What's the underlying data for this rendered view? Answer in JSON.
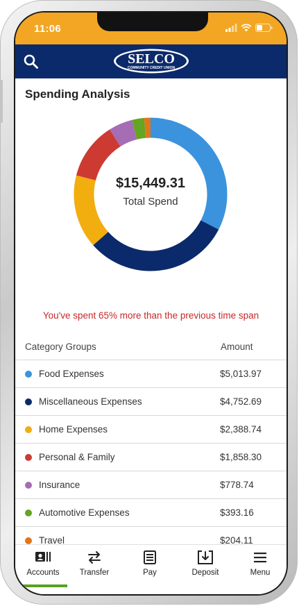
{
  "status": {
    "time": "11:06"
  },
  "header": {
    "logo_text": "SELCO",
    "logo_subtext": "COMMUNITY CREDIT UNION"
  },
  "page": {
    "title": "Spending Analysis",
    "total_amount": "$15,449.31",
    "total_label": "Total Spend",
    "comparison_message": "You've spent 65% more than the previous time span"
  },
  "table": {
    "col_category": "Category Groups",
    "col_amount": "Amount",
    "rows": [
      {
        "category": "Food Expenses",
        "amount": "$5,013.97",
        "value": 5013.97,
        "color": "#3b93dd"
      },
      {
        "category": "Miscellaneous Expenses",
        "amount": "$4,752.69",
        "value": 4752.69,
        "color": "#0b2a6b"
      },
      {
        "category": "Home Expenses",
        "amount": "$2,388.74",
        "value": 2388.74,
        "color": "#f2ad0f"
      },
      {
        "category": "Personal & Family",
        "amount": "$1,858.30",
        "value": 1858.3,
        "color": "#cc3a32"
      },
      {
        "category": "Insurance",
        "amount": "$778.74",
        "value": 778.74,
        "color": "#a56db3"
      },
      {
        "category": "Automotive Expenses",
        "amount": "$393.16",
        "value": 393.16,
        "color": "#64a521"
      },
      {
        "category": "Travel",
        "amount": "$204.11",
        "value": 204.11,
        "color": "#e0761c"
      }
    ]
  },
  "tabs": [
    {
      "label": "Accounts",
      "icon": "accounts-icon",
      "active": true
    },
    {
      "label": "Transfer",
      "icon": "transfer-icon",
      "active": false
    },
    {
      "label": "Pay",
      "icon": "pay-icon",
      "active": false
    },
    {
      "label": "Deposit",
      "icon": "deposit-icon",
      "active": false
    },
    {
      "label": "Menu",
      "icon": "menu-icon",
      "active": false
    }
  ],
  "colors": {
    "status_bar": "#f2a623",
    "header": "#0b2a6b",
    "alert_text": "#c62828",
    "active_tab_indicator": "#5aa11f"
  }
}
